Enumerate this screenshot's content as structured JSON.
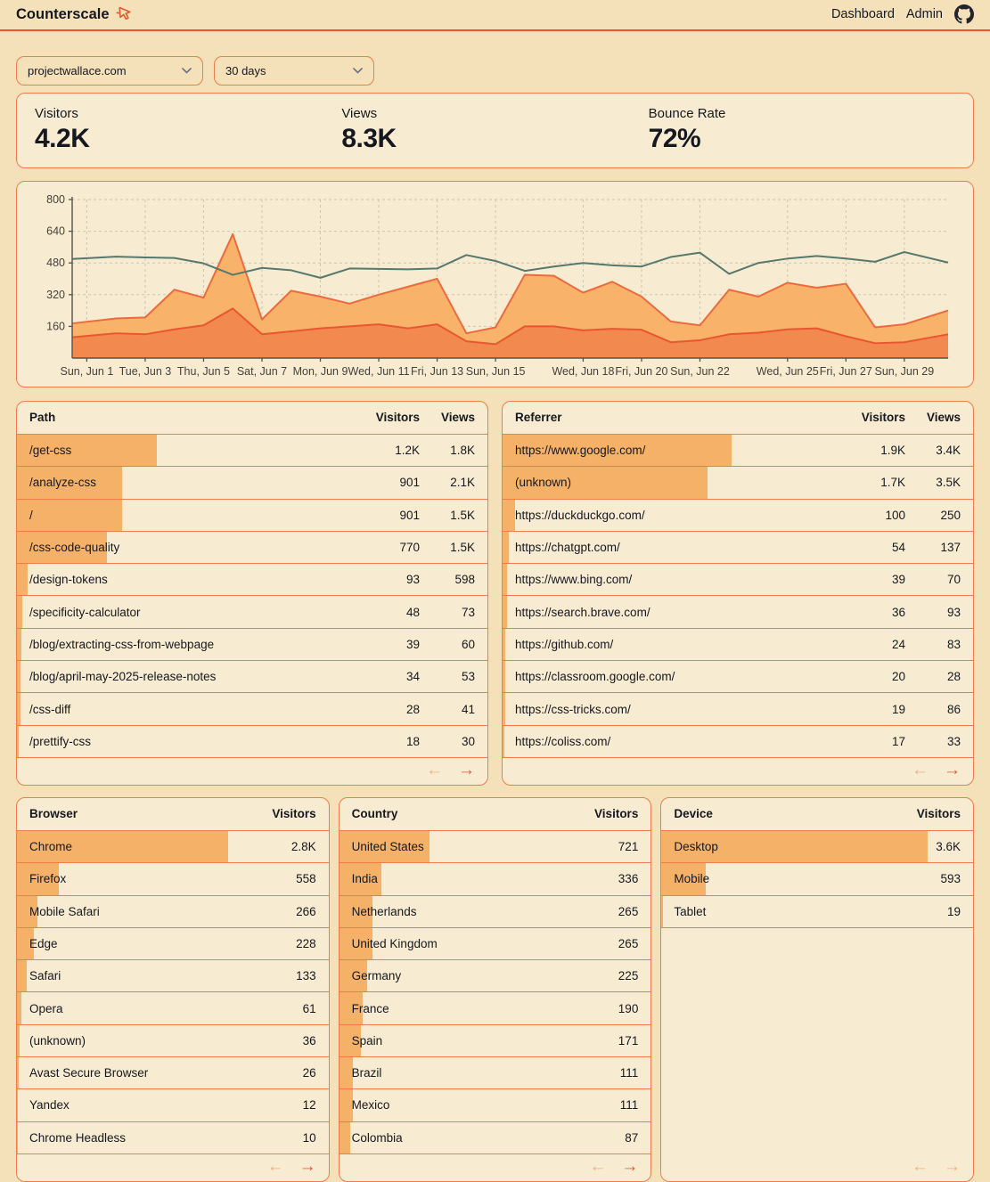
{
  "header": {
    "brand": "Counterscale",
    "nav": [
      "Dashboard",
      "Admin"
    ]
  },
  "filters": {
    "site": "projectwallace.com",
    "range": "30 days"
  },
  "stats": [
    {
      "label": "Visitors",
      "value": "4.2K"
    },
    {
      "label": "Views",
      "value": "8.3K"
    },
    {
      "label": "Bounce Rate",
      "value": "72%"
    }
  ],
  "chart_data": {
    "type": "area",
    "title": "",
    "xlabel": "",
    "ylabel": "",
    "x_days": [
      "Jun 1",
      "Jun 2",
      "Jun 3",
      "Jun 4",
      "Jun 5",
      "Jun 6",
      "Jun 7",
      "Jun 8",
      "Jun 9",
      "Jun 10",
      "Jun 11",
      "Jun 12",
      "Jun 13",
      "Jun 14",
      "Jun 15",
      "Jun 16",
      "Jun 17",
      "Jun 18",
      "Jun 19",
      "Jun 20",
      "Jun 21",
      "Jun 22",
      "Jun 23",
      "Jun 24",
      "Jun 25",
      "Jun 26",
      "Jun 27",
      "Jun 28",
      "Jun 29",
      "Jun 30"
    ],
    "xticks": [
      {
        "day": 0,
        "label": "Sun, Jun 1"
      },
      {
        "day": 2,
        "label": "Tue, Jun 3"
      },
      {
        "day": 4,
        "label": "Thu, Jun 5"
      },
      {
        "day": 6,
        "label": "Sat, Jun 7"
      },
      {
        "day": 8,
        "label": "Mon, Jun 9"
      },
      {
        "day": 10,
        "label": "Wed, Jun 11"
      },
      {
        "day": 12,
        "label": "Fri, Jun 13"
      },
      {
        "day": 14,
        "label": "Sun, Jun 15"
      },
      {
        "day": 17,
        "label": "Wed, Jun 18"
      },
      {
        "day": 19,
        "label": "Fri, Jun 20"
      },
      {
        "day": 21,
        "label": "Sun, Jun 22"
      },
      {
        "day": 24,
        "label": "Wed, Jun 25"
      },
      {
        "day": 26,
        "label": "Fri, Jun 27"
      },
      {
        "day": 28,
        "label": "Sun, Jun 29"
      }
    ],
    "ylim": [
      0,
      800
    ],
    "yticks": [
      160,
      320,
      480,
      640,
      800
    ],
    "grid": true,
    "legend": false,
    "series": [
      {
        "name": "views",
        "type": "area",
        "fill": "#f8b269",
        "stroke": "#ed6a3f",
        "values": [
          175,
          200,
          205,
          345,
          305,
          625,
          195,
          340,
          310,
          275,
          320,
          360,
          400,
          125,
          155,
          420,
          415,
          330,
          385,
          310,
          185,
          165,
          345,
          310,
          380,
          355,
          375,
          155,
          170,
          240
        ]
      },
      {
        "name": "visitors",
        "type": "area",
        "fill": "#f2894f",
        "stroke": "#e9572f",
        "values": [
          105,
          125,
          120,
          145,
          165,
          250,
          120,
          135,
          150,
          160,
          170,
          150,
          170,
          85,
          70,
          160,
          160,
          140,
          148,
          143,
          80,
          90,
          120,
          128,
          145,
          150,
          110,
          75,
          80,
          120
        ]
      },
      {
        "name": "trend",
        "type": "line",
        "stroke": "#56786d",
        "values": [
          500,
          512,
          508,
          505,
          478,
          420,
          455,
          443,
          405,
          452,
          450,
          448,
          452,
          520,
          490,
          440,
          462,
          480,
          468,
          462,
          510,
          532,
          425,
          480,
          502,
          515,
          502,
          486,
          535,
          482
        ]
      }
    ]
  },
  "tables": {
    "path": {
      "title": "Path",
      "columns": [
        "Visitors",
        "Views"
      ],
      "rows": [
        {
          "label": "/get-css",
          "values": [
            "1.2K",
            "1.8K"
          ],
          "v": 1200
        },
        {
          "label": "/analyze-css",
          "values": [
            "901",
            "2.1K"
          ],
          "v": 901
        },
        {
          "label": "/",
          "values": [
            "901",
            "1.5K"
          ],
          "v": 901
        },
        {
          "label": "/css-code-quality",
          "values": [
            "770",
            "1.5K"
          ],
          "v": 770
        },
        {
          "label": "/design-tokens",
          "values": [
            "93",
            "598"
          ],
          "v": 93
        },
        {
          "label": "/specificity-calculator",
          "values": [
            "48",
            "73"
          ],
          "v": 48
        },
        {
          "label": "/blog/extracting-css-from-webpage",
          "values": [
            "39",
            "60"
          ],
          "v": 39
        },
        {
          "label": "/blog/april-may-2025-release-notes",
          "values": [
            "34",
            "53"
          ],
          "v": 34
        },
        {
          "label": "/css-diff",
          "values": [
            "28",
            "41"
          ],
          "v": 28
        },
        {
          "label": "/prettify-css",
          "values": [
            "18",
            "30"
          ],
          "v": 18
        }
      ],
      "pager": {
        "prev_enabled": false,
        "next_enabled": true
      }
    },
    "referrer": {
      "title": "Referrer",
      "columns": [
        "Visitors",
        "Views"
      ],
      "rows": [
        {
          "label": "https://www.google.com/",
          "values": [
            "1.9K",
            "3.4K"
          ],
          "v": 1900
        },
        {
          "label": "(unknown)",
          "values": [
            "1.7K",
            "3.5K"
          ],
          "v": 1700
        },
        {
          "label": "https://duckduckgo.com/",
          "values": [
            "100",
            "250"
          ],
          "v": 100
        },
        {
          "label": "https://chatgpt.com/",
          "values": [
            "54",
            "137"
          ],
          "v": 54
        },
        {
          "label": "https://www.bing.com/",
          "values": [
            "39",
            "70"
          ],
          "v": 39
        },
        {
          "label": "https://search.brave.com/",
          "values": [
            "36",
            "93"
          ],
          "v": 36
        },
        {
          "label": "https://github.com/",
          "values": [
            "24",
            "83"
          ],
          "v": 24
        },
        {
          "label": "https://classroom.google.com/",
          "values": [
            "20",
            "28"
          ],
          "v": 20
        },
        {
          "label": "https://css-tricks.com/",
          "values": [
            "19",
            "86"
          ],
          "v": 19
        },
        {
          "label": "https://coliss.com/",
          "values": [
            "17",
            "33"
          ],
          "v": 17
        }
      ],
      "pager": {
        "prev_enabled": false,
        "next_enabled": true
      }
    },
    "browser": {
      "title": "Browser",
      "columns": [
        "Visitors"
      ],
      "rows": [
        {
          "label": "Chrome",
          "values": [
            "2.8K"
          ],
          "v": 2800
        },
        {
          "label": "Firefox",
          "values": [
            "558"
          ],
          "v": 558
        },
        {
          "label": "Mobile Safari",
          "values": [
            "266"
          ],
          "v": 266
        },
        {
          "label": "Edge",
          "values": [
            "228"
          ],
          "v": 228
        },
        {
          "label": "Safari",
          "values": [
            "133"
          ],
          "v": 133
        },
        {
          "label": "Opera",
          "values": [
            "61"
          ],
          "v": 61
        },
        {
          "label": "(unknown)",
          "values": [
            "36"
          ],
          "v": 36
        },
        {
          "label": "Avast Secure Browser",
          "values": [
            "26"
          ],
          "v": 26
        },
        {
          "label": "Yandex",
          "values": [
            "12"
          ],
          "v": 12
        },
        {
          "label": "Chrome Headless",
          "values": [
            "10"
          ],
          "v": 10
        }
      ],
      "pager": {
        "prev_enabled": false,
        "next_enabled": true
      }
    },
    "country": {
      "title": "Country",
      "columns": [
        "Visitors"
      ],
      "rows": [
        {
          "label": "United States",
          "values": [
            "721"
          ],
          "v": 721
        },
        {
          "label": "India",
          "values": [
            "336"
          ],
          "v": 336
        },
        {
          "label": "Netherlands",
          "values": [
            "265"
          ],
          "v": 265
        },
        {
          "label": "United Kingdom",
          "values": [
            "265"
          ],
          "v": 265
        },
        {
          "label": "Germany",
          "values": [
            "225"
          ],
          "v": 225
        },
        {
          "label": "France",
          "values": [
            "190"
          ],
          "v": 190
        },
        {
          "label": "Spain",
          "values": [
            "171"
          ],
          "v": 171
        },
        {
          "label": "Brazil",
          "values": [
            "111"
          ],
          "v": 111
        },
        {
          "label": "Mexico",
          "values": [
            "111"
          ],
          "v": 111
        },
        {
          "label": "Colombia",
          "values": [
            "87"
          ],
          "v": 87
        }
      ],
      "pager": {
        "prev_enabled": false,
        "next_enabled": true
      }
    },
    "device": {
      "title": "Device",
      "columns": [
        "Visitors"
      ],
      "rows": [
        {
          "label": "Desktop",
          "values": [
            "3.6K"
          ],
          "v": 3600
        },
        {
          "label": "Mobile",
          "values": [
            "593"
          ],
          "v": 593
        },
        {
          "label": "Tablet",
          "values": [
            "19"
          ],
          "v": 19
        }
      ],
      "pager": {
        "prev_enabled": false,
        "next_enabled": false
      }
    }
  },
  "pager_icons": {
    "prev": "←",
    "next": "→"
  },
  "colors": {
    "accent": "#e9582b",
    "border": "#ef7d4a",
    "bar": "#f5b168",
    "card_bg": "#f7ebd1",
    "page_bg": "#f4e1ba",
    "trend_line": "#56786d"
  }
}
